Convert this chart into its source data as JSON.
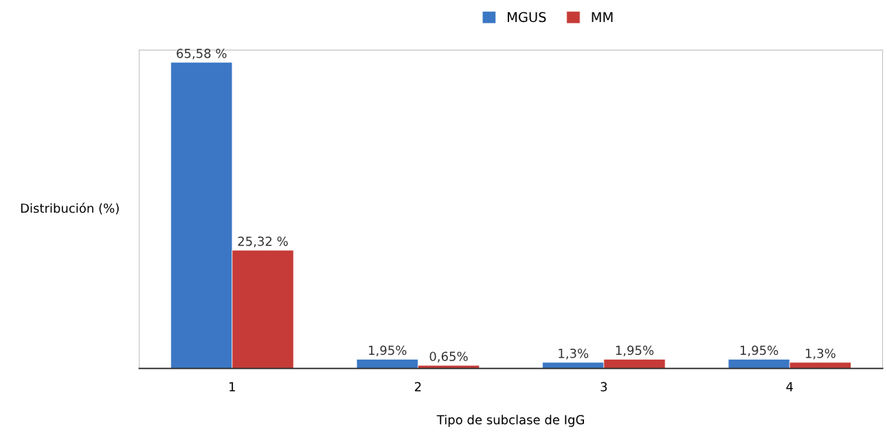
{
  "chart_data": {
    "type": "bar",
    "xlabel": "Tipo de subclase de IgG",
    "ylabel": "Distribución (%)",
    "categories": [
      "1",
      "2",
      "3",
      "4"
    ],
    "series": [
      {
        "name": "MGUS",
        "color": "#3b77c4",
        "values": [
          65.58,
          1.95,
          1.3,
          1.95
        ],
        "value_labels": [
          "65,58 %",
          "1,95%",
          "1,3%",
          "1,95%"
        ]
      },
      {
        "name": "MM",
        "color": "#c63b37",
        "values": [
          25.32,
          0.65,
          1.95,
          1.3
        ],
        "value_labels": [
          "25,32 %",
          "0,65%",
          "1,95%",
          "1,3%"
        ]
      }
    ],
    "legend": "top",
    "grid": false
  }
}
